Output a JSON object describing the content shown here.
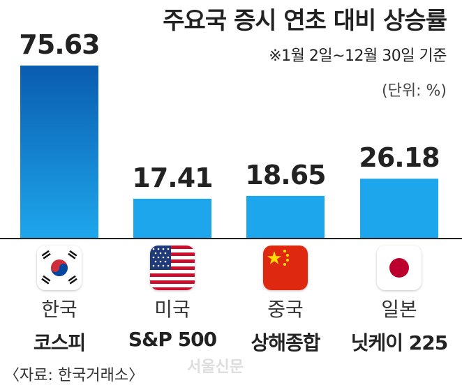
{
  "chart_data": {
    "type": "bar",
    "title": "주요국 증시 연초 대비 상승률",
    "subtitle": "※1월 2일~12월 30일 기준",
    "unit": "(단위: %)",
    "categories": [
      "코스피",
      "S&P 500",
      "상해종합",
      "닛케이 225"
    ],
    "countries": [
      "한국",
      "미국",
      "중국",
      "일본"
    ],
    "values": [
      75.63,
      17.41,
      18.65,
      26.18
    ],
    "value_labels": [
      "75.63",
      "17.41",
      "18.65",
      "26.18"
    ],
    "ylim": [
      0,
      80
    ],
    "grid": false,
    "source": "〈자료: 한국거래소〉",
    "watermark": "서울신문"
  },
  "colors": {
    "bar_top_highlight": "#0a5cb0",
    "bar_bottom": "#1ea7ec",
    "bar_other": "#1ea6ec",
    "baseline": "#222222"
  },
  "flags": [
    "korea-flag-icon",
    "usa-flag-icon",
    "china-flag-icon",
    "japan-flag-icon"
  ]
}
